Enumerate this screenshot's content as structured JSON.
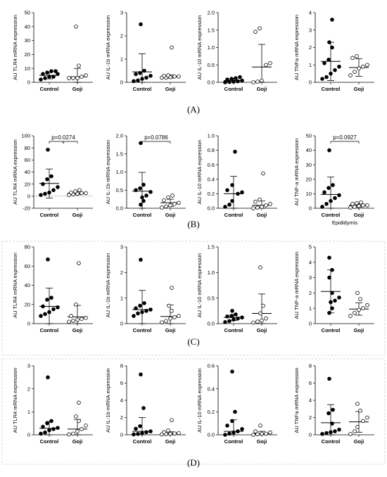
{
  "panels": [
    {
      "id": "A",
      "label": "(A)"
    },
    {
      "id": "B",
      "label": "(B)"
    },
    {
      "id": "C",
      "label": "(C)"
    },
    {
      "id": "D",
      "label": "(D)"
    }
  ],
  "colors": {
    "control": "#000000",
    "goji": "#ffffff",
    "stroke": "#000000",
    "frame": "#cfcfcf"
  },
  "chart_data": [
    {
      "panel": "A",
      "type": "scatter",
      "ylabel": "AU TLR4 mRNA expression",
      "categories": [
        "Control",
        "Goji"
      ],
      "yticks": [
        0,
        10,
        20,
        30,
        40,
        50
      ],
      "ylim": [
        0,
        50
      ],
      "series": [
        {
          "name": "Control",
          "values": [
            2,
            3,
            4,
            4,
            6,
            6,
            7,
            8,
            8
          ],
          "mean": 5,
          "sd": 2.5
        },
        {
          "name": "Goji",
          "values": [
            3,
            3,
            3,
            4,
            5,
            12,
            40
          ],
          "mean": 4,
          "sd": 6
        }
      ]
    },
    {
      "panel": "A",
      "type": "scatter",
      "ylabel": "AU IL-1b mRNA expression",
      "categories": [
        "Control",
        "Goji"
      ],
      "yticks": [
        0,
        1,
        2,
        3
      ],
      "ylim": [
        0,
        3
      ],
      "series": [
        {
          "name": "Control",
          "values": [
            0.05,
            0.08,
            0.15,
            0.2,
            0.28,
            0.35,
            0.4,
            0.5,
            2.5
          ],
          "mean": 0.45,
          "sd": 0.78
        },
        {
          "name": "Goji",
          "values": [
            0.2,
            0.2,
            0.22,
            0.25,
            0.25,
            0.28,
            0.3,
            1.5
          ],
          "mean": 0.25,
          "sd": 0.07
        }
      ]
    },
    {
      "panel": "A",
      "type": "scatter",
      "ylabel": "AU IL-10 mRNA expression",
      "categories": [
        "Control",
        "Goji"
      ],
      "yticks": [
        0.0,
        0.5,
        1.0,
        1.5,
        2.0
      ],
      "ylim": [
        0,
        2
      ],
      "series": [
        {
          "name": "Control",
          "values": [
            0.0,
            0.01,
            0.02,
            0.03,
            0.05,
            0.08,
            0.1,
            0.12,
            0.15
          ],
          "mean": 0.05,
          "sd": 0.06
        },
        {
          "name": "Goji",
          "values": [
            0.0,
            0.02,
            0.05,
            0.5,
            0.55,
            1.45,
            1.55
          ],
          "mean": 0.44,
          "sd": 0.65
        }
      ]
    },
    {
      "panel": "A",
      "type": "scatter",
      "ylabel": "AU TNFa mRNA expression",
      "categories": [
        "Control",
        "Goji"
      ],
      "yticks": [
        0,
        1,
        2,
        3,
        4
      ],
      "ylim": [
        0,
        4
      ],
      "series": [
        {
          "name": "Control",
          "values": [
            0.2,
            0.3,
            0.5,
            0.7,
            0.9,
            1.1,
            1.3,
            2.0,
            2.3,
            3.6
          ],
          "mean": 1.2,
          "sd": 1.1
        },
        {
          "name": "Goji",
          "values": [
            0.4,
            0.6,
            0.8,
            0.9,
            1.0,
            1.4,
            1.5
          ],
          "mean": 0.85,
          "sd": 0.5
        }
      ]
    },
    {
      "panel": "B",
      "type": "scatter",
      "ylabel": "AU TLR4 mRNA expression",
      "categories": [
        "Control",
        "Goji"
      ],
      "yticks": [
        -20,
        0,
        20,
        40,
        60,
        80,
        100
      ],
      "ylim": [
        -20,
        100
      ],
      "annotation": {
        "text": "p=0.0274",
        "star": "*"
      },
      "series": [
        {
          "name": "Control",
          "values": [
            2,
            4,
            6,
            10,
            15,
            20,
            28,
            33,
            77
          ],
          "mean": 21,
          "sd": 24
        },
        {
          "name": "Goji",
          "values": [
            2,
            3,
            4,
            5,
            5,
            6,
            8,
            10
          ],
          "mean": 5,
          "sd": 2.5
        }
      ]
    },
    {
      "panel": "B",
      "type": "scatter",
      "ylabel": "AU IL-1b mRNA expression",
      "categories": [
        "Control",
        "Goji"
      ],
      "yticks": [
        0.0,
        0.5,
        1.0,
        1.5,
        2.0
      ],
      "ylim": [
        0,
        2
      ],
      "annotation": {
        "text": "p=0.0786"
      },
      "series": [
        {
          "name": "Control",
          "values": [
            0.1,
            0.2,
            0.3,
            0.35,
            0.45,
            0.5,
            0.55,
            0.65,
            1.8
          ],
          "mean": 0.47,
          "sd": 0.52
        },
        {
          "name": "Goji",
          "values": [
            0.02,
            0.05,
            0.08,
            0.12,
            0.15,
            0.22,
            0.3,
            0.35
          ],
          "mean": 0.15,
          "sd": 0.1
        }
      ]
    },
    {
      "panel": "B",
      "type": "scatter",
      "ylabel": "AU IL-10 mRNA expression",
      "categories": [
        "Control",
        "Goji"
      ],
      "yticks": [
        0.0,
        0.2,
        0.4,
        0.6,
        0.8,
        1.0
      ],
      "ylim": [
        0,
        1
      ],
      "series": [
        {
          "name": "Control",
          "values": [
            0.02,
            0.05,
            0.1,
            0.2,
            0.22,
            0.25,
            0.32,
            0.78
          ],
          "mean": 0.2,
          "sd": 0.24
        },
        {
          "name": "Goji",
          "values": [
            0.0,
            0.01,
            0.02,
            0.04,
            0.06,
            0.09,
            0.12,
            0.48
          ],
          "mean": 0.04,
          "sd": 0.06
        }
      ]
    },
    {
      "panel": "B",
      "type": "scatter",
      "ylabel": "AU TNF-a mRNA expression",
      "categories": [
        "Control",
        "Goji"
      ],
      "yticks": [
        0,
        10,
        20,
        30,
        40,
        50
      ],
      "ylim": [
        0,
        50
      ],
      "xlabel": "Epididymis",
      "annotation": {
        "text": "p=0.0927"
      },
      "series": [
        {
          "name": "Control",
          "values": [
            1,
            3,
            5,
            7,
            9,
            11,
            14,
            16,
            40
          ],
          "mean": 9.5,
          "sd": 12
        },
        {
          "name": "Goji",
          "values": [
            0.5,
            1,
            1.5,
            2,
            2,
            3,
            3.5,
            4
          ],
          "mean": 2,
          "sd": 1.2
        }
      ]
    },
    {
      "panel": "C",
      "type": "scatter",
      "ylabel": "AU TLR4 mRNA expression",
      "categories": [
        "Control",
        "Goji"
      ],
      "yticks": [
        0,
        20,
        40,
        60,
        80
      ],
      "ylim": [
        0,
        80
      ],
      "series": [
        {
          "name": "Control",
          "values": [
            8,
            10,
            12,
            15,
            17,
            18,
            25,
            27,
            67
          ],
          "mean": 18,
          "sd": 19
        },
        {
          "name": "Goji",
          "values": [
            2,
            3,
            4,
            5,
            6,
            8,
            20,
            63
          ],
          "mean": 7,
          "sd": 12
        }
      ]
    },
    {
      "panel": "C",
      "type": "scatter",
      "ylabel": "AU IL-1b mRNA expression",
      "categories": [
        "Control",
        "Goji"
      ],
      "yticks": [
        0,
        1,
        2,
        3
      ],
      "ylim": [
        0,
        3
      ],
      "series": [
        {
          "name": "Control",
          "values": [
            0.3,
            0.4,
            0.45,
            0.5,
            0.55,
            0.6,
            0.7,
            0.8,
            2.5
          ],
          "mean": 0.55,
          "sd": 0.75
        },
        {
          "name": "Goji",
          "values": [
            0.05,
            0.1,
            0.2,
            0.25,
            0.3,
            0.5,
            0.7,
            1.4
          ],
          "mean": 0.28,
          "sd": 0.45
        }
      ]
    },
    {
      "panel": "C",
      "type": "scatter",
      "ylabel": "AU IL-10 mRNA expression",
      "categories": [
        "Control",
        "Goji"
      ],
      "yticks": [
        0.0,
        0.5,
        1.0,
        1.5
      ],
      "ylim": [
        0,
        1.5
      ],
      "series": [
        {
          "name": "Control",
          "values": [
            0.03,
            0.05,
            0.08,
            0.1,
            0.12,
            0.14,
            0.15,
            0.18,
            0.25
          ],
          "mean": 0.12,
          "sd": 0.06
        },
        {
          "name": "Goji",
          "values": [
            0.02,
            0.04,
            0.06,
            0.1,
            0.2,
            0.35,
            1.1
          ],
          "mean": 0.2,
          "sd": 0.38
        }
      ]
    },
    {
      "panel": "C",
      "type": "scatter",
      "ylabel": "AU TNF-a mRNA expression",
      "categories": [
        "Control",
        "Goji"
      ],
      "yticks": [
        0,
        1,
        2,
        3,
        4,
        5
      ],
      "ylim": [
        0,
        5
      ],
      "series": [
        {
          "name": "Control",
          "values": [
            0.7,
            1.0,
            1.4,
            1.5,
            1.7,
            2.0,
            3.0,
            3.5,
            4.3
          ],
          "mean": 2.1,
          "sd": 1.4
        },
        {
          "name": "Goji",
          "values": [
            0.5,
            0.7,
            0.9,
            1.0,
            1.2,
            1.6,
            2.0
          ],
          "mean": 0.95,
          "sd": 0.4
        }
      ]
    },
    {
      "panel": "D",
      "type": "scatter",
      "ylabel": "AU TLR4 mRNA expression",
      "categories": [
        "Control",
        "Goji"
      ],
      "yticks": [
        0,
        1,
        2,
        3
      ],
      "ylim": [
        0,
        3
      ],
      "series": [
        {
          "name": "Control",
          "values": [
            0.05,
            0.1,
            0.2,
            0.25,
            0.3,
            0.35,
            0.5,
            0.6,
            2.5
          ],
          "mean": 0.28,
          "sd": 0.3
        },
        {
          "name": "Goji",
          "values": [
            0.02,
            0.05,
            0.15,
            0.25,
            0.4,
            0.6,
            0.8,
            1.4
          ],
          "mean": 0.25,
          "sd": 0.42
        }
      ]
    },
    {
      "panel": "D",
      "type": "scatter",
      "ylabel": "AU IL-1b mRNA expression",
      "categories": [
        "Control",
        "Goji"
      ],
      "yticks": [
        0,
        2,
        4,
        6,
        8
      ],
      "ylim": [
        0,
        8
      ],
      "series": [
        {
          "name": "Control",
          "values": [
            0.05,
            0.1,
            0.2,
            0.3,
            0.4,
            0.7,
            1.0,
            3.1,
            7.0
          ],
          "mean": 0.4,
          "sd": 1.6
        },
        {
          "name": "Goji",
          "values": [
            0.05,
            0.08,
            0.1,
            0.15,
            0.2,
            0.3,
            0.5,
            1.7
          ],
          "mean": 0.2,
          "sd": 0.15
        }
      ]
    },
    {
      "panel": "D",
      "type": "scatter",
      "ylabel": "AU IL-10 mRNA expression",
      "categories": [
        "Control",
        "Goji"
      ],
      "yticks": [
        0.0,
        0.2,
        0.4,
        0.6
      ],
      "ylim": [
        0,
        0.6
      ],
      "series": [
        {
          "name": "Control",
          "values": [
            0.0,
            0.01,
            0.02,
            0.03,
            0.05,
            0.08,
            0.12,
            0.2,
            0.55
          ],
          "mean": 0.03,
          "sd": 0.1
        },
        {
          "name": "Goji",
          "values": [
            0.0,
            0.005,
            0.01,
            0.01,
            0.02,
            0.03,
            0.08
          ],
          "mean": 0.01,
          "sd": 0.02
        }
      ]
    },
    {
      "panel": "D",
      "type": "scatter",
      "ylabel": "AU TNFa mRNA expression",
      "categories": [
        "Control",
        "Goji"
      ],
      "yticks": [
        0,
        2,
        4,
        6,
        8
      ],
      "ylim": [
        0,
        8
      ],
      "series": [
        {
          "name": "Control",
          "values": [
            0.1,
            0.2,
            0.3,
            0.4,
            0.6,
            1.3,
            2.5,
            2.9,
            6.5
          ],
          "mean": 1.4,
          "sd": 2.1
        },
        {
          "name": "Goji",
          "values": [
            0.1,
            0.4,
            0.9,
            1.6,
            2.0,
            2.8,
            3.6
          ],
          "mean": 1.5,
          "sd": 1.2
        }
      ]
    }
  ]
}
